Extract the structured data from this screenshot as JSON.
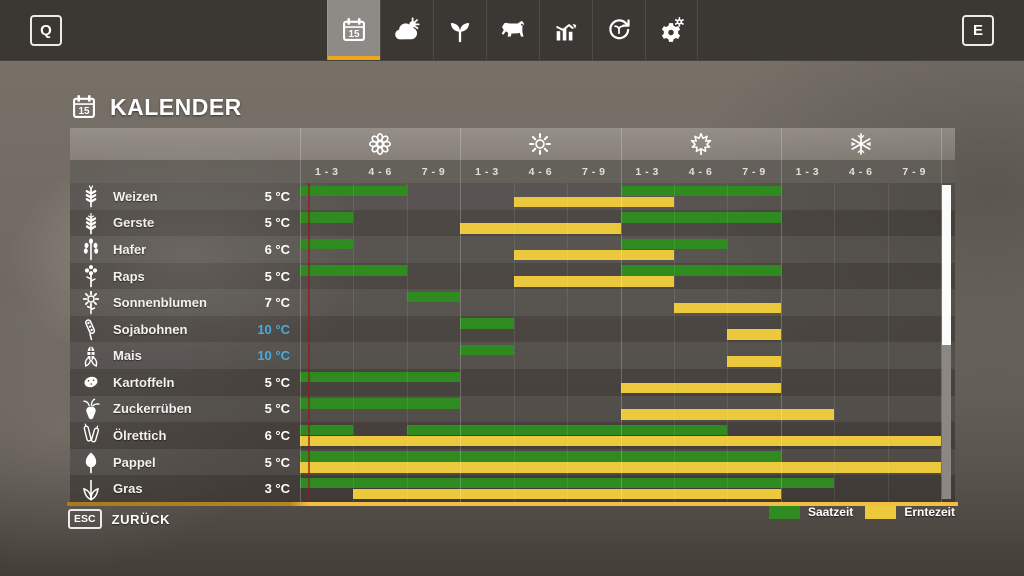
{
  "topbar": {
    "left_key": "Q",
    "right_key": "E",
    "tabs": [
      {
        "id": "calendar",
        "icon": "calendar-icon",
        "selected": true
      },
      {
        "id": "weather",
        "icon": "weather-icon",
        "selected": false
      },
      {
        "id": "crops",
        "icon": "seedling-icon",
        "selected": false
      },
      {
        "id": "animals",
        "icon": "cow-icon",
        "selected": false
      },
      {
        "id": "statistics",
        "icon": "stats-icon",
        "selected": false
      },
      {
        "id": "economy",
        "icon": "cycle-icon",
        "selected": false
      },
      {
        "id": "settings",
        "icon": "gear-icon",
        "selected": false
      }
    ]
  },
  "page": {
    "title": "KALENDER",
    "title_icon": "calendar-icon"
  },
  "calendar": {
    "seasons": [
      {
        "name": "spring",
        "icon": "flower-icon"
      },
      {
        "name": "summer",
        "icon": "sun-icon"
      },
      {
        "name": "autumn",
        "icon": "leaf-icon"
      },
      {
        "name": "winter",
        "icon": "snowflake-icon"
      }
    ],
    "period_labels": [
      "1 - 3",
      "4 - 6",
      "7 - 9"
    ],
    "columns_total": 12,
    "colors": {
      "sow": "#2f8b1f",
      "harvest": "#ecc83d",
      "temp_cold": "#49aadf",
      "today_line": "#941c1a"
    },
    "rows": [
      {
        "icon": "wheat-icon",
        "name": "Weizen",
        "temp": "5 °C",
        "cold": false,
        "sow": [
          [
            1,
            2
          ],
          [
            7,
            9
          ]
        ],
        "harvest": [
          [
            5,
            7
          ]
        ]
      },
      {
        "icon": "barley-icon",
        "name": "Gerste",
        "temp": "5 °C",
        "cold": false,
        "sow": [
          [
            1,
            1
          ],
          [
            7,
            9
          ]
        ],
        "harvest": [
          [
            4,
            6
          ]
        ]
      },
      {
        "icon": "oat-icon",
        "name": "Hafer",
        "temp": "6 °C",
        "cold": false,
        "sow": [
          [
            1,
            1
          ],
          [
            7,
            8
          ]
        ],
        "harvest": [
          [
            5,
            7
          ]
        ]
      },
      {
        "icon": "canola-icon",
        "name": "Raps",
        "temp": "5 °C",
        "cold": false,
        "sow": [
          [
            1,
            2
          ],
          [
            7,
            9
          ]
        ],
        "harvest": [
          [
            5,
            7
          ]
        ]
      },
      {
        "icon": "sunflower-icon",
        "name": "Sonnenblumen",
        "temp": "7 °C",
        "cold": false,
        "sow": [
          [
            3,
            3
          ]
        ],
        "harvest": [
          [
            8,
            9
          ]
        ]
      },
      {
        "icon": "soybean-icon",
        "name": "Sojabohnen",
        "temp": "10 °C",
        "cold": true,
        "sow": [
          [
            4,
            4
          ]
        ],
        "harvest": [
          [
            9,
            9
          ]
        ]
      },
      {
        "icon": "corn-icon",
        "name": "Mais",
        "temp": "10 °C",
        "cold": true,
        "sow": [
          [
            4,
            4
          ]
        ],
        "harvest": [
          [
            9,
            9
          ]
        ]
      },
      {
        "icon": "potato-icon",
        "name": "Kartoffeln",
        "temp": "5 °C",
        "cold": false,
        "sow": [
          [
            1,
            3
          ]
        ],
        "harvest": [
          [
            7,
            9
          ]
        ]
      },
      {
        "icon": "sugarbeet-icon",
        "name": "Zuckerrüben",
        "temp": "5 °C",
        "cold": false,
        "sow": [
          [
            1,
            3
          ]
        ],
        "harvest": [
          [
            7,
            10
          ]
        ]
      },
      {
        "icon": "radish-icon",
        "name": "Ölrettich",
        "temp": "6 °C",
        "cold": false,
        "sow": [
          [
            1,
            1
          ],
          [
            3,
            8
          ]
        ],
        "harvest": [
          [
            1,
            12
          ]
        ]
      },
      {
        "icon": "poplar-icon",
        "name": "Pappel",
        "temp": "5 °C",
        "cold": false,
        "sow": [
          [
            1,
            9
          ]
        ],
        "harvest": [
          [
            1,
            12
          ]
        ]
      },
      {
        "icon": "grass-icon",
        "name": "Gras",
        "temp": "3 °C",
        "cold": false,
        "sow": [
          [
            1,
            10
          ]
        ],
        "harvest": [
          [
            2,
            9
          ]
        ]
      }
    ]
  },
  "footer": {
    "back_key": "ESC",
    "back_label": "ZURÜCK",
    "legend": [
      {
        "label": "Saatzeit",
        "color": "#2f8b1f"
      },
      {
        "label": "Erntezeit",
        "color": "#ecc83d"
      }
    ]
  }
}
